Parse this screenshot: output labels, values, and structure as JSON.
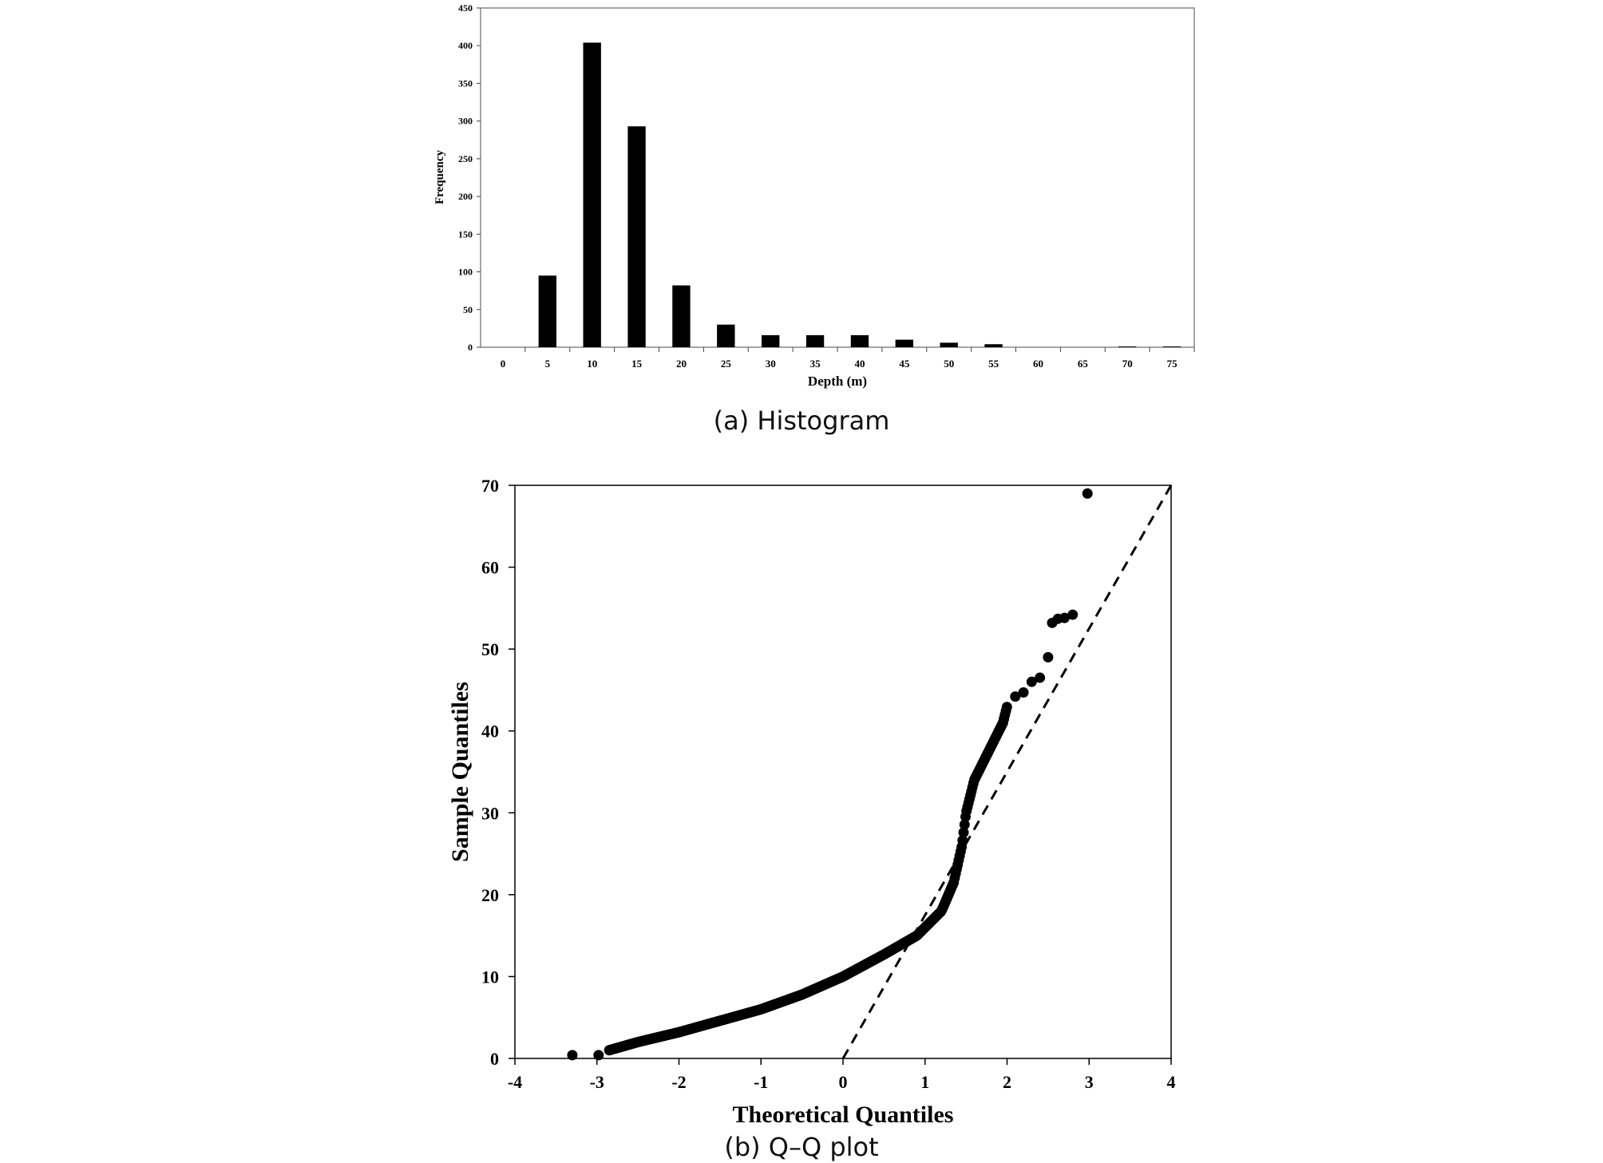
{
  "figure": {
    "caption_a": "(a) Histogram",
    "caption_b": "(b) Q–Q plot"
  },
  "chart_data": [
    {
      "type": "bar",
      "title": "",
      "xlabel": "Depth (m)",
      "ylabel": "Frequency",
      "categories": [
        "0",
        "5",
        "10",
        "15",
        "20",
        "25",
        "30",
        "35",
        "40",
        "45",
        "50",
        "55",
        "60",
        "65",
        "70",
        "75"
      ],
      "values": [
        0,
        95,
        404,
        293,
        82,
        30,
        16,
        16,
        16,
        10,
        6,
        4,
        0,
        0,
        1,
        1
      ],
      "ylim": [
        0,
        450
      ],
      "yticks": [
        0,
        50,
        100,
        150,
        200,
        250,
        300,
        350,
        400,
        450
      ],
      "grid": false
    },
    {
      "type": "scatter",
      "title": "",
      "xlabel": "Theoretical Quantiles",
      "ylabel": "Sample Quantiles",
      "xlim": [
        -4,
        4
      ],
      "ylim": [
        0,
        70
      ],
      "xticks": [
        -4,
        -3,
        -2,
        -1,
        0,
        1,
        2,
        3,
        4
      ],
      "yticks": [
        0,
        10,
        20,
        30,
        40,
        50,
        60,
        70
      ],
      "reference_line": {
        "style": "dashed",
        "x": [
          0,
          4
        ],
        "y": [
          0,
          70
        ]
      },
      "curve_knots": {
        "x": [
          -2.85,
          -2.5,
          -2.0,
          -1.5,
          -1.0,
          -0.5,
          0.0,
          0.5,
          0.9,
          1.2,
          1.35,
          1.45,
          1.5,
          1.6,
          1.8,
          1.95,
          2.0
        ],
        "y": [
          1.0,
          2.0,
          3.2,
          4.6,
          6.0,
          7.8,
          10.0,
          12.7,
          15.0,
          18.0,
          21.5,
          26.0,
          30.0,
          34.0,
          38.0,
          41.0,
          43.0
        ]
      },
      "outlier_points": {
        "x": [
          -3.3,
          -2.98,
          2.1,
          2.2,
          2.3,
          2.4,
          2.5,
          2.55,
          2.62,
          2.7,
          2.8,
          2.98
        ],
        "y": [
          0.4,
          0.4,
          44.2,
          44.7,
          46.0,
          46.5,
          49.0,
          53.2,
          53.7,
          53.8,
          54.2,
          69.0
        ]
      }
    }
  ]
}
